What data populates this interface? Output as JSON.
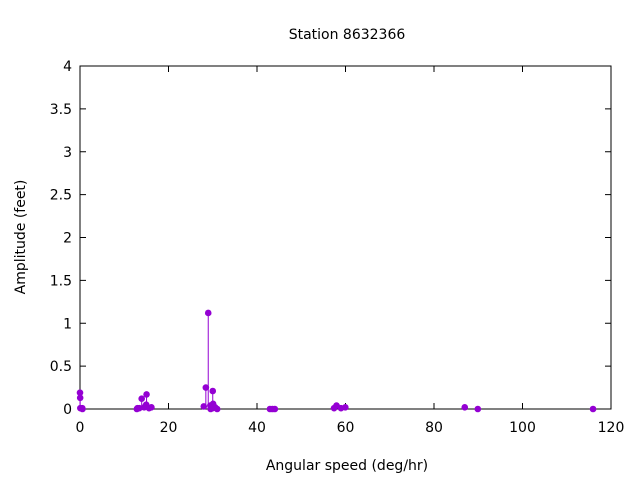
{
  "chart_data": {
    "type": "scatter",
    "style": "impulses-with-points",
    "title": "Station 8632366",
    "xlabel": "Angular speed (deg/hr)",
    "ylabel": "Amplitude (feet)",
    "xlim": [
      0,
      120
    ],
    "ylim": [
      0,
      4
    ],
    "x_ticks": [
      0,
      20,
      40,
      60,
      80,
      100,
      120
    ],
    "x_tick_labels": [
      "0",
      "20",
      "40",
      "60",
      "80",
      "100",
      "120"
    ],
    "y_ticks": [
      0,
      0.5,
      1,
      1.5,
      2,
      2.5,
      3,
      3.5,
      4
    ],
    "y_tick_labels": [
      "0",
      "0.5",
      "1",
      "1.5",
      "2",
      "2.5",
      "3",
      "3.5",
      "4"
    ],
    "grid": false,
    "legend": "none",
    "color": "#9400d3",
    "points": [
      {
        "x": 0.0,
        "y": 0.19
      },
      {
        "x": 0.04,
        "y": 0.13
      },
      {
        "x": 0.08,
        "y": 0.01
      },
      {
        "x": 0.5,
        "y": 0.01
      },
      {
        "x": 0.55,
        "y": 0.0
      },
      {
        "x": 12.85,
        "y": 0.0
      },
      {
        "x": 13.0,
        "y": 0.01
      },
      {
        "x": 13.4,
        "y": 0.01
      },
      {
        "x": 13.94,
        "y": 0.12
      },
      {
        "x": 14.5,
        "y": 0.02
      },
      {
        "x": 14.96,
        "y": 0.05
      },
      {
        "x": 15.04,
        "y": 0.17
      },
      {
        "x": 15.6,
        "y": 0.01
      },
      {
        "x": 16.14,
        "y": 0.02
      },
      {
        "x": 27.97,
        "y": 0.03
      },
      {
        "x": 28.44,
        "y": 0.25
      },
      {
        "x": 28.98,
        "y": 1.12
      },
      {
        "x": 29.46,
        "y": 0.04
      },
      {
        "x": 29.53,
        "y": 0.0
      },
      {
        "x": 29.96,
        "y": 0.01
      },
      {
        "x": 30.0,
        "y": 0.21
      },
      {
        "x": 30.08,
        "y": 0.06
      },
      {
        "x": 30.54,
        "y": 0.02
      },
      {
        "x": 31.0,
        "y": 0.0
      },
      {
        "x": 42.93,
        "y": 0.0
      },
      {
        "x": 43.48,
        "y": 0.0
      },
      {
        "x": 44.03,
        "y": 0.0
      },
      {
        "x": 57.42,
        "y": 0.01
      },
      {
        "x": 57.97,
        "y": 0.04
      },
      {
        "x": 58.98,
        "y": 0.01
      },
      {
        "x": 59.96,
        "y": 0.02
      },
      {
        "x": 86.95,
        "y": 0.02
      },
      {
        "x": 89.9,
        "y": 0.0
      },
      {
        "x": 115.94,
        "y": 0.0
      }
    ]
  }
}
